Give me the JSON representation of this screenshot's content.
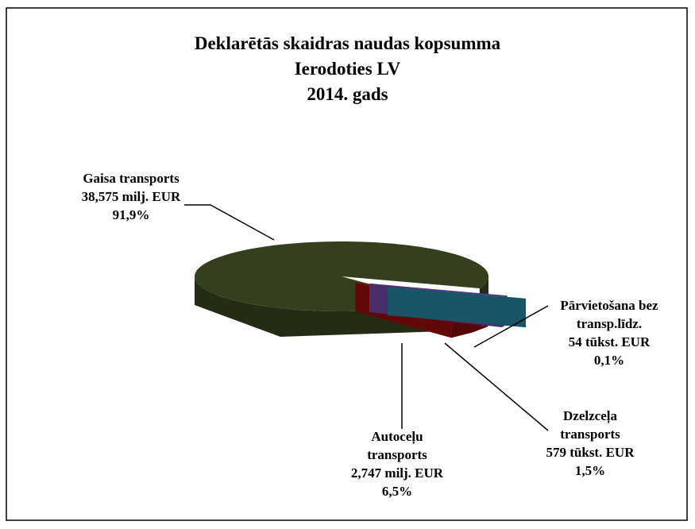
{
  "chart_data": {
    "type": "pie3d",
    "title": [
      "Deklarētās skaidras naudas kopsumma",
      "Ierodoties LV",
      "2014. gads"
    ],
    "categories": [
      "Gaisa transports",
      "Autoceļu transports",
      "Dzelzceļa transports",
      "Pārvietošana bez transp.līdz."
    ],
    "amounts": [
      "38,575 milj. EUR",
      "2,747 milj. EUR",
      "579 tūkst. EUR",
      "54 tūkst. EUR"
    ],
    "values": [
      91.9,
      6.5,
      1.5,
      0.1
    ],
    "value_labels": [
      "91,9%",
      "6,5%",
      "1,5%",
      "0,1%"
    ],
    "colors": [
      "#333f1f",
      "#7a0a0a",
      "#5b3a84",
      "#1f6a80"
    ]
  }
}
